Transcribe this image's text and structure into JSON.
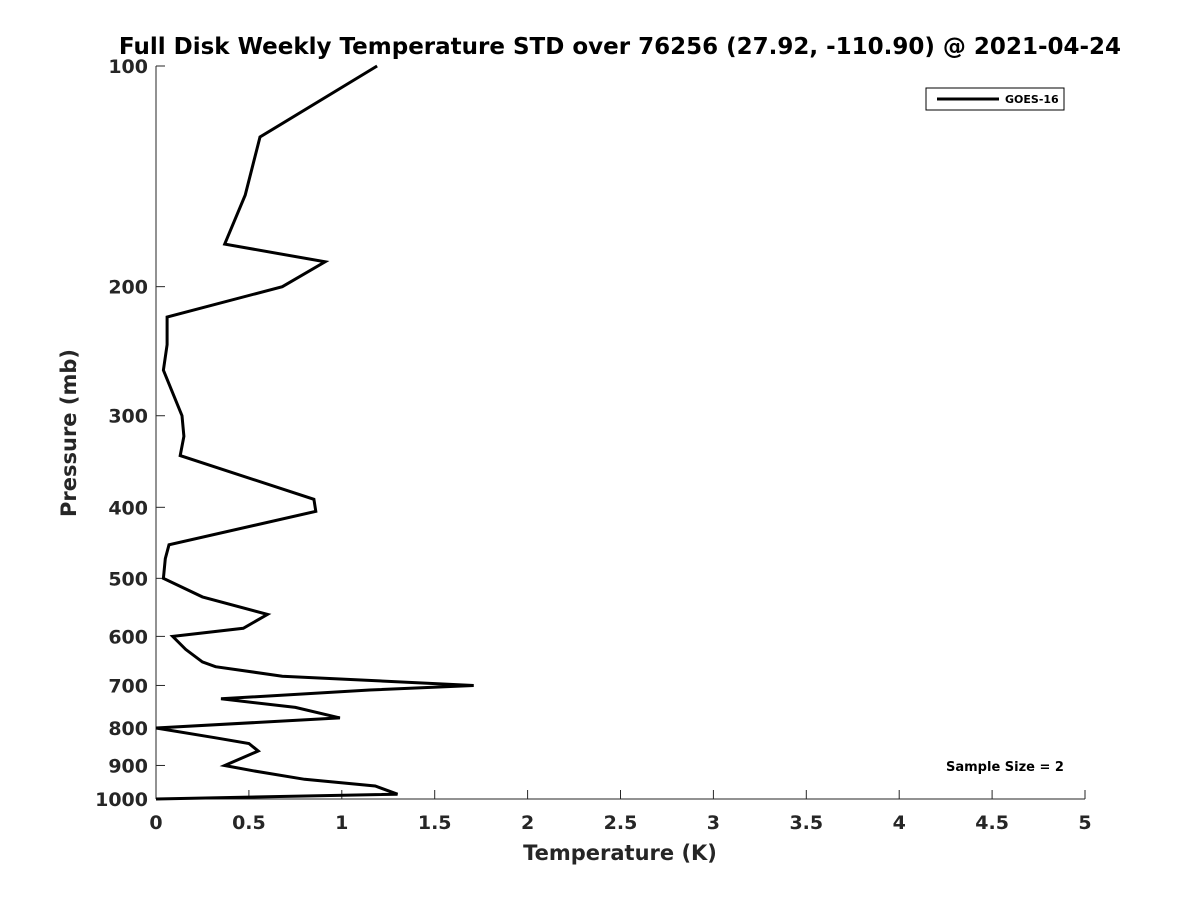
{
  "chart_data": {
    "type": "line",
    "title": "Full Disk Weekly Temperature STD over 76256 (27.92, -110.90) @ 2021-04-24",
    "xlabel": "Temperature (K)",
    "ylabel": "Pressure (mb)",
    "xlim": [
      0,
      5
    ],
    "ylim": [
      100,
      1000
    ],
    "y_scale": "log",
    "y_reversed": true,
    "grid": false,
    "legend_position": "top-right",
    "x_ticks": [
      0,
      0.5,
      1,
      1.5,
      2,
      2.5,
      3,
      3.5,
      4,
      4.5,
      5
    ],
    "x_tick_labels": [
      "0",
      "0.5",
      "1",
      "1.5",
      "2",
      "2.5",
      "3",
      "3.5",
      "4",
      "4.5",
      "5"
    ],
    "y_ticks": [
      100,
      200,
      300,
      400,
      500,
      600,
      700,
      800,
      900,
      1000
    ],
    "y_tick_labels": [
      "100",
      "200",
      "300",
      "400",
      "500",
      "600",
      "700",
      "800",
      "900",
      "1000"
    ],
    "series": [
      {
        "name": "GOES-16",
        "color": "#000000",
        "points": [
          {
            "x": 1.19,
            "p": 100
          },
          {
            "x": 0.56,
            "p": 125
          },
          {
            "x": 0.48,
            "p": 150
          },
          {
            "x": 0.37,
            "p": 175
          },
          {
            "x": 0.91,
            "p": 185
          },
          {
            "x": 0.68,
            "p": 200
          },
          {
            "x": 0.06,
            "p": 220
          },
          {
            "x": 0.06,
            "p": 240
          },
          {
            "x": 0.04,
            "p": 260
          },
          {
            "x": 0.14,
            "p": 300
          },
          {
            "x": 0.15,
            "p": 320
          },
          {
            "x": 0.13,
            "p": 340
          },
          {
            "x": 0.85,
            "p": 390
          },
          {
            "x": 0.86,
            "p": 405
          },
          {
            "x": 0.07,
            "p": 450
          },
          {
            "x": 0.05,
            "p": 470
          },
          {
            "x": 0.04,
            "p": 500
          },
          {
            "x": 0.25,
            "p": 530
          },
          {
            "x": 0.6,
            "p": 560
          },
          {
            "x": 0.47,
            "p": 585
          },
          {
            "x": 0.09,
            "p": 600
          },
          {
            "x": 0.16,
            "p": 625
          },
          {
            "x": 0.25,
            "p": 650
          },
          {
            "x": 0.32,
            "p": 660
          },
          {
            "x": 0.68,
            "p": 680
          },
          {
            "x": 1.71,
            "p": 700
          },
          {
            "x": 1.15,
            "p": 710
          },
          {
            "x": 0.35,
            "p": 730
          },
          {
            "x": 0.75,
            "p": 750
          },
          {
            "x": 0.99,
            "p": 775
          },
          {
            "x": 0.0,
            "p": 800
          },
          {
            "x": 0.32,
            "p": 825
          },
          {
            "x": 0.5,
            "p": 840
          },
          {
            "x": 0.55,
            "p": 860
          },
          {
            "x": 0.37,
            "p": 900
          },
          {
            "x": 0.52,
            "p": 915
          },
          {
            "x": 0.8,
            "p": 940
          },
          {
            "x": 1.18,
            "p": 960
          },
          {
            "x": 1.3,
            "p": 985
          },
          {
            "x": 0.0,
            "p": 1000
          }
        ]
      }
    ],
    "annotation": "Sample Size = 2"
  }
}
